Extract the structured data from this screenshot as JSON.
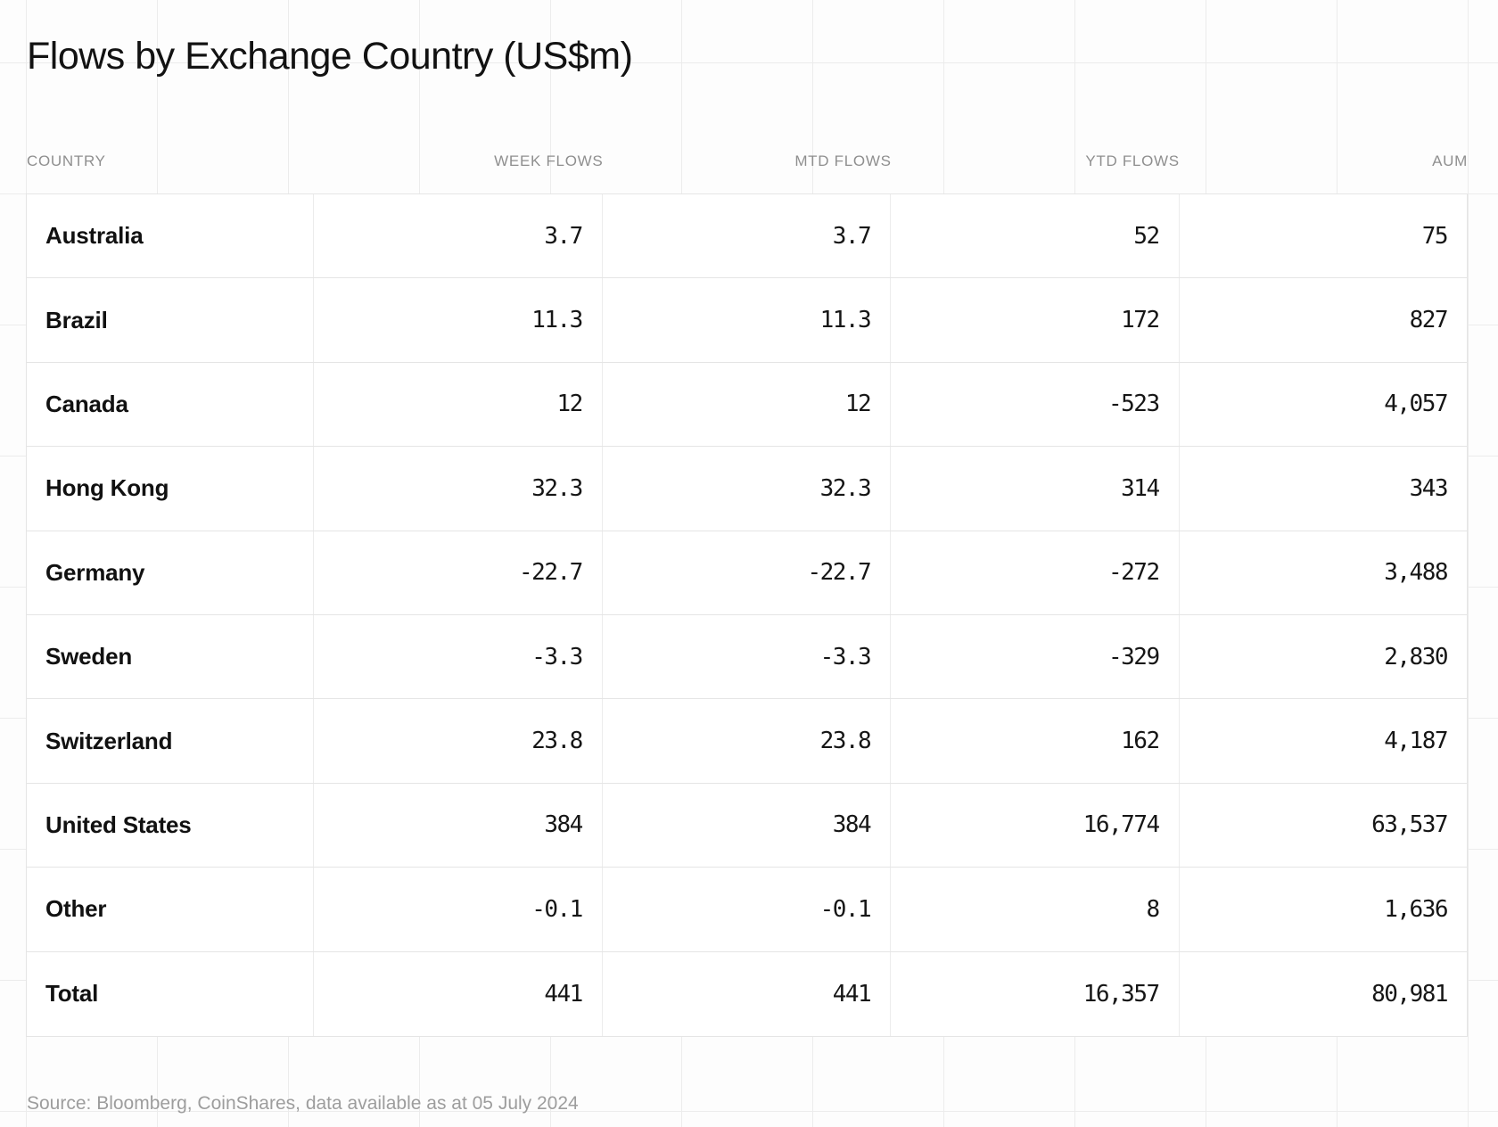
{
  "title": "Flows by Exchange Country (US$m)",
  "table": {
    "headers": [
      "COUNTRY",
      "WEEK FLOWS",
      "MTD FLOWS",
      "YTD FLOWS",
      "AUM"
    ],
    "rows": [
      {
        "country": "Australia",
        "week": "3.7",
        "mtd": "3.7",
        "ytd": "52",
        "aum": "75"
      },
      {
        "country": "Brazil",
        "week": "11.3",
        "mtd": "11.3",
        "ytd": "172",
        "aum": "827"
      },
      {
        "country": "Canada",
        "week": "12",
        "mtd": "12",
        "ytd": "-523",
        "aum": "4,057"
      },
      {
        "country": "Hong Kong",
        "week": "32.3",
        "mtd": "32.3",
        "ytd": "314",
        "aum": "343"
      },
      {
        "country": "Germany",
        "week": "-22.7",
        "mtd": "-22.7",
        "ytd": "-272",
        "aum": "3,488"
      },
      {
        "country": "Sweden",
        "week": "-3.3",
        "mtd": "-3.3",
        "ytd": "-329",
        "aum": "2,830"
      },
      {
        "country": "Switzerland",
        "week": "23.8",
        "mtd": "23.8",
        "ytd": "162",
        "aum": "4,187"
      },
      {
        "country": "United States",
        "week": "384",
        "mtd": "384",
        "ytd": "16,774",
        "aum": "63,537"
      },
      {
        "country": "Other",
        "week": "-0.1",
        "mtd": "-0.1",
        "ytd": "8",
        "aum": "1,636"
      },
      {
        "country": "Total",
        "week": "441",
        "mtd": "441",
        "ytd": "16,357",
        "aum": "80,981"
      }
    ]
  },
  "source_note": "Source: Bloomberg, CoinShares, data available as at 05 July 2024",
  "colors": {
    "title_text": "#121212",
    "header_text": "#8f8f8f",
    "body_text": "#161616",
    "table_border": "#e5e5e5",
    "background_grid": "#ececec",
    "cell_background": "#ffffff",
    "source_text": "#9d9d9d"
  },
  "chart_data": {
    "type": "table",
    "title": "Flows by Exchange Country (US$m)",
    "columns": [
      "Country",
      "Week flows",
      "MTD flows",
      "YTD flows",
      "AUM"
    ],
    "rows": [
      [
        "Australia",
        3.7,
        3.7,
        52,
        75
      ],
      [
        "Brazil",
        11.3,
        11.3,
        172,
        827
      ],
      [
        "Canada",
        12,
        12,
        -523,
        4057
      ],
      [
        "Hong Kong",
        32.3,
        32.3,
        314,
        343
      ],
      [
        "Germany",
        -22.7,
        -22.7,
        -272,
        3488
      ],
      [
        "Sweden",
        -3.3,
        -3.3,
        -329,
        2830
      ],
      [
        "Switzerland",
        23.8,
        23.8,
        162,
        4187
      ],
      [
        "United States",
        384,
        384,
        16774,
        63537
      ],
      [
        "Other",
        -0.1,
        -0.1,
        8,
        1636
      ],
      [
        "Total",
        441,
        441,
        16357,
        80981
      ]
    ],
    "units": "US$m",
    "footnote": "Source: Bloomberg, CoinShares, data available as at 05 July 2024",
    "layout": {
      "grid_background": true,
      "numbers_right_aligned": true,
      "header_uppercase": true
    }
  }
}
